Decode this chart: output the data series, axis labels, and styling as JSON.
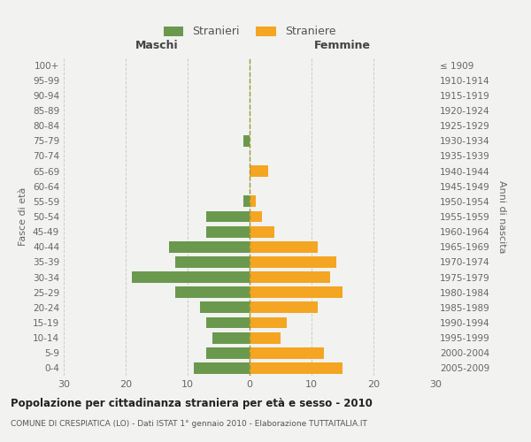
{
  "age_groups": [
    "0-4",
    "5-9",
    "10-14",
    "15-19",
    "20-24",
    "25-29",
    "30-34",
    "35-39",
    "40-44",
    "45-49",
    "50-54",
    "55-59",
    "60-64",
    "65-69",
    "70-74",
    "75-79",
    "80-84",
    "85-89",
    "90-94",
    "95-99",
    "100+"
  ],
  "birth_years": [
    "2005-2009",
    "2000-2004",
    "1995-1999",
    "1990-1994",
    "1985-1989",
    "1980-1984",
    "1975-1979",
    "1970-1974",
    "1965-1969",
    "1960-1964",
    "1955-1959",
    "1950-1954",
    "1945-1949",
    "1940-1944",
    "1935-1939",
    "1930-1934",
    "1925-1929",
    "1920-1924",
    "1915-1919",
    "1910-1914",
    "≤ 1909"
  ],
  "maschi": [
    9,
    7,
    6,
    7,
    8,
    12,
    19,
    12,
    13,
    7,
    7,
    1,
    0,
    0,
    0,
    1,
    0,
    0,
    0,
    0,
    0
  ],
  "femmine": [
    15,
    12,
    5,
    6,
    11,
    15,
    13,
    14,
    11,
    4,
    2,
    1,
    0,
    3,
    0,
    0,
    0,
    0,
    0,
    0,
    0
  ],
  "male_color": "#6a994e",
  "female_color": "#f4a522",
  "bg_color": "#f2f2f0",
  "grid_color": "#cccccc",
  "title": "Popolazione per cittadinanza straniera per età e sesso - 2010",
  "subtitle": "COMUNE DI CRESPIATICA (LO) - Dati ISTAT 1° gennaio 2010 - Elaborazione TUTTAITALIA.IT",
  "xlabel_left": "Maschi",
  "xlabel_right": "Femmine",
  "ylabel_left": "Fasce di età",
  "ylabel_right": "Anni di nascita",
  "legend_stranieri": "Stranieri",
  "legend_straniere": "Straniere",
  "xlim": 30
}
